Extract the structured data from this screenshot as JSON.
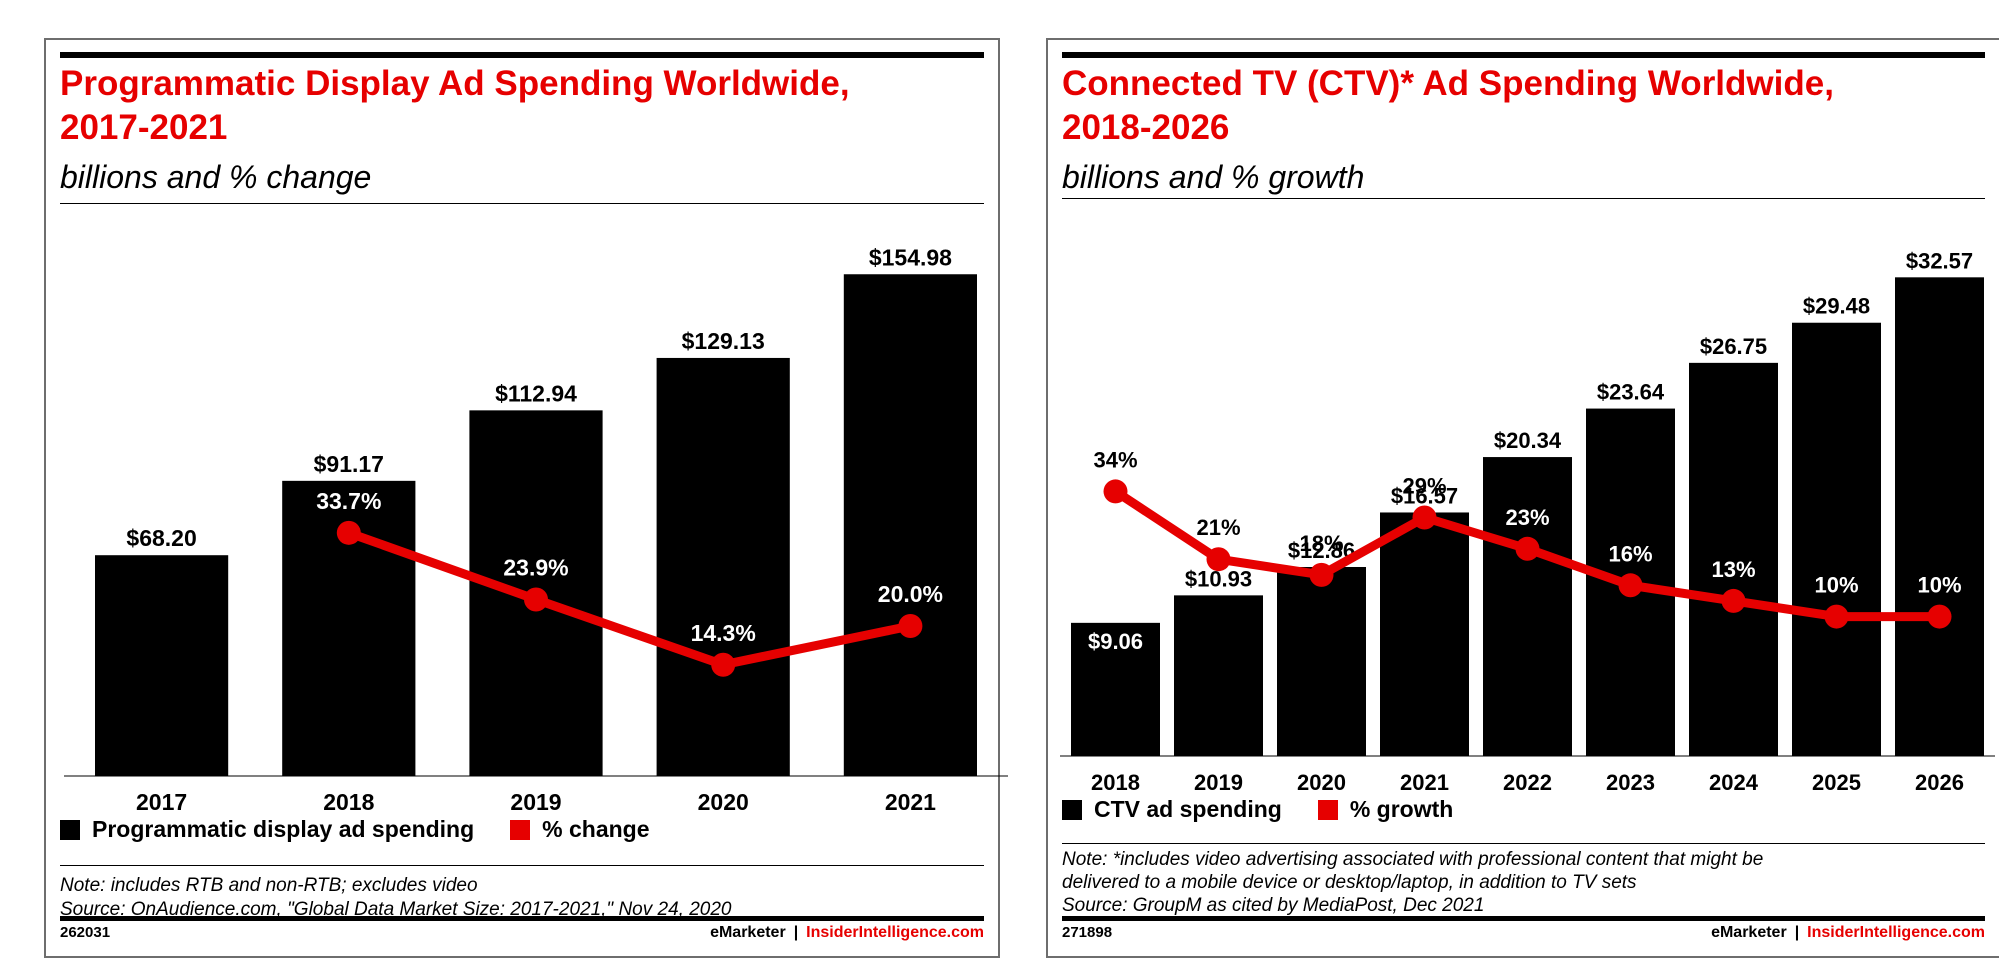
{
  "panels": [
    {
      "title_line1": "Programmatic Display Ad Spending Worldwide,",
      "title_line2": "2017-2021",
      "subtitle": "billions and % change",
      "legend": {
        "bar": "Programmatic display ad spending",
        "line": "% change"
      },
      "note": [
        "Note: includes RTB and non-RTB; excludes video",
        "Source: OnAudience.com, \"Global Data Market Size: 2017-2021,\" Nov 24, 2020"
      ],
      "chart_id": "262031",
      "brand": {
        "em": "eMarketer",
        "sep": "|",
        "ii": "InsiderIntelligence.com"
      }
    },
    {
      "title_line1": "Connected TV (CTV)* Ad Spending Worldwide,",
      "title_line2": "2018-2026",
      "subtitle": "billions and % growth",
      "legend": {
        "bar": "CTV ad spending",
        "line": "% growth"
      },
      "note": [
        "Note: *includes video advertising associated with professional content that might be",
        "delivered to a mobile device or desktop/laptop, in addition to TV sets",
        "Source: GroupM as cited by MediaPost, Dec 2021"
      ],
      "chart_id": "271898",
      "brand": {
        "em": "eMarketer",
        "sep": "|",
        "ii": "InsiderIntelligence.com"
      }
    }
  ],
  "colors": {
    "bar": "#000000",
    "line": "#e60000",
    "title": "#e60000"
  },
  "chart_data": [
    {
      "type": "bar",
      "title": "Programmatic Display Ad Spending Worldwide, 2017-2021",
      "categories": [
        "2017",
        "2018",
        "2019",
        "2020",
        "2021"
      ],
      "series": [
        {
          "name": "Programmatic display ad spending",
          "type": "bar",
          "values": [
            68.2,
            91.17,
            112.94,
            129.13,
            154.98
          ],
          "labels": [
            "$68.20",
            "$91.17",
            "$112.94",
            "$129.13",
            "$154.98"
          ]
        },
        {
          "name": "% change",
          "type": "line",
          "values": [
            null,
            33.7,
            23.9,
            14.3,
            20.0
          ],
          "labels": [
            "",
            "33.7%",
            "23.9%",
            "14.3%",
            "20.0%"
          ]
        }
      ],
      "legend": "bottom",
      "grid": false
    },
    {
      "type": "bar",
      "title": "Connected TV (CTV)* Ad Spending Worldwide, 2018-2026",
      "categories": [
        "2018",
        "2019",
        "2020",
        "2021",
        "2022",
        "2023",
        "2024",
        "2025",
        "2026"
      ],
      "series": [
        {
          "name": "CTV ad spending",
          "type": "bar",
          "values": [
            9.06,
            10.93,
            12.86,
            16.57,
            20.34,
            23.64,
            26.75,
            29.48,
            32.57
          ],
          "labels": [
            "$9.06",
            "$10.93",
            "$12.86",
            "$16.57",
            "$20.34",
            "$23.64",
            "$26.75",
            "$29.48",
            "$32.57"
          ]
        },
        {
          "name": "% growth",
          "type": "line",
          "values": [
            34,
            21,
            18,
            29,
            23,
            16,
            13,
            10,
            10
          ],
          "labels": [
            "34%",
            "21%",
            "18%",
            "29%",
            "23%",
            "16%",
            "13%",
            "10%",
            "10%"
          ]
        }
      ],
      "legend": "bottom",
      "grid": false
    }
  ]
}
